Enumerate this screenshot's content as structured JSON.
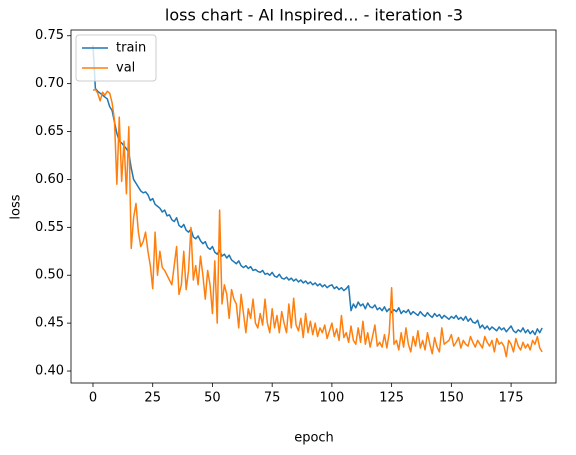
{
  "chart_data": {
    "type": "line",
    "title": "loss chart - AI Inspired... - iteration -3",
    "x_label": "epoch",
    "y_label": "loss",
    "x": [
      0,
      1,
      2,
      3,
      4,
      5,
      6,
      7,
      8,
      9,
      10,
      11,
      12,
      13,
      14,
      15,
      16,
      17,
      18,
      19,
      20,
      21,
      22,
      23,
      24,
      25,
      26,
      27,
      28,
      29,
      30,
      31,
      32,
      33,
      34,
      35,
      36,
      37,
      38,
      39,
      40,
      41,
      42,
      43,
      44,
      45,
      46,
      47,
      48,
      49,
      50,
      51,
      52,
      53,
      54,
      55,
      56,
      57,
      58,
      59,
      60,
      61,
      62,
      63,
      64,
      65,
      66,
      67,
      68,
      69,
      70,
      71,
      72,
      73,
      74,
      75,
      76,
      77,
      78,
      79,
      80,
      81,
      82,
      83,
      84,
      85,
      86,
      87,
      88,
      89,
      90,
      91,
      92,
      93,
      94,
      95,
      96,
      97,
      98,
      99,
      100,
      101,
      102,
      103,
      104,
      105,
      106,
      107,
      108,
      109,
      110,
      111,
      112,
      113,
      114,
      115,
      116,
      117,
      118,
      119,
      120,
      121,
      122,
      123,
      124,
      125,
      126,
      127,
      128,
      129,
      130,
      131,
      132,
      133,
      134,
      135,
      136,
      137,
      138,
      139,
      140,
      141,
      142,
      143,
      144,
      145,
      146,
      147,
      148,
      149,
      150,
      151,
      152,
      153,
      154,
      155,
      156,
      157,
      158,
      159,
      160,
      161,
      162,
      163,
      164,
      165,
      166,
      167,
      168,
      169,
      170,
      171,
      172,
      173,
      174,
      175,
      176,
      177,
      178,
      179,
      180,
      181,
      182,
      183,
      184,
      185,
      186,
      187,
      188
    ],
    "series": [
      {
        "name": "train",
        "color": "#1f77b4",
        "values": [
          0.74,
          0.695,
          0.692,
          0.69,
          0.688,
          0.686,
          0.684,
          0.676,
          0.672,
          0.66,
          0.648,
          0.64,
          0.638,
          0.635,
          0.632,
          0.628,
          0.612,
          0.6,
          0.596,
          0.592,
          0.588,
          0.586,
          0.587,
          0.584,
          0.578,
          0.58,
          0.574,
          0.572,
          0.57,
          0.566,
          0.568,
          0.562,
          0.563,
          0.558,
          0.556,
          0.56,
          0.552,
          0.55,
          0.553,
          0.547,
          0.545,
          0.548,
          0.54,
          0.538,
          0.541,
          0.536,
          0.533,
          0.535,
          0.529,
          0.527,
          0.53,
          0.524,
          0.522,
          0.526,
          0.52,
          0.522,
          0.518,
          0.521,
          0.516,
          0.514,
          0.512,
          0.515,
          0.51,
          0.508,
          0.51,
          0.507,
          0.509,
          0.505,
          0.506,
          0.504,
          0.503,
          0.505,
          0.501,
          0.502,
          0.5,
          0.503,
          0.499,
          0.498,
          0.501,
          0.497,
          0.496,
          0.498,
          0.495,
          0.497,
          0.494,
          0.496,
          0.493,
          0.495,
          0.492,
          0.494,
          0.491,
          0.493,
          0.49,
          0.492,
          0.489,
          0.491,
          0.488,
          0.49,
          0.487,
          0.489,
          0.49,
          0.486,
          0.488,
          0.485,
          0.487,
          0.484,
          0.486,
          0.489,
          0.463,
          0.47,
          0.466,
          0.472,
          0.468,
          0.47,
          0.465,
          0.471,
          0.467,
          0.466,
          0.469,
          0.464,
          0.466,
          0.463,
          0.467,
          0.462,
          0.465,
          0.461,
          0.464,
          0.462,
          0.466,
          0.46,
          0.463,
          0.461,
          0.464,
          0.459,
          0.462,
          0.46,
          0.458,
          0.462,
          0.459,
          0.457,
          0.461,
          0.458,
          0.456,
          0.46,
          0.457,
          0.459,
          0.455,
          0.458,
          0.456,
          0.454,
          0.457,
          0.455,
          0.458,
          0.454,
          0.456,
          0.453,
          0.457,
          0.452,
          0.455,
          0.451,
          0.45,
          0.453,
          0.445,
          0.448,
          0.444,
          0.447,
          0.443,
          0.446,
          0.444,
          0.442,
          0.446,
          0.443,
          0.445,
          0.441,
          0.444,
          0.447,
          0.442,
          0.44,
          0.443,
          0.441,
          0.445,
          0.44,
          0.443,
          0.439,
          0.442,
          0.438,
          0.444,
          0.44,
          0.445
        ]
      },
      {
        "name": "val",
        "color": "#ff7f0e",
        "values": [
          0.693,
          0.694,
          0.69,
          0.682,
          0.691,
          0.688,
          0.692,
          0.69,
          0.68,
          0.662,
          0.595,
          0.665,
          0.598,
          0.64,
          0.585,
          0.655,
          0.528,
          0.56,
          0.575,
          0.545,
          0.53,
          0.535,
          0.545,
          0.525,
          0.51,
          0.486,
          0.545,
          0.5,
          0.525,
          0.508,
          0.505,
          0.5,
          0.495,
          0.49,
          0.51,
          0.53,
          0.48,
          0.49,
          0.525,
          0.485,
          0.505,
          0.55,
          0.495,
          0.51,
          0.49,
          0.52,
          0.5,
          0.475,
          0.505,
          0.49,
          0.46,
          0.515,
          0.45,
          0.568,
          0.47,
          0.49,
          0.48,
          0.455,
          0.485,
          0.475,
          0.47,
          0.445,
          0.48,
          0.46,
          0.44,
          0.465,
          0.455,
          0.475,
          0.45,
          0.445,
          0.46,
          0.448,
          0.475,
          0.45,
          0.44,
          0.465,
          0.445,
          0.458,
          0.44,
          0.462,
          0.45,
          0.44,
          0.47,
          0.445,
          0.476,
          0.448,
          0.442,
          0.455,
          0.435,
          0.46,
          0.44,
          0.452,
          0.438,
          0.45,
          0.436,
          0.445,
          0.44,
          0.448,
          0.434,
          0.442,
          0.45,
          0.436,
          0.444,
          0.432,
          0.458,
          0.435,
          0.44,
          0.43,
          0.447,
          0.432,
          0.428,
          0.445,
          0.43,
          0.452,
          0.428,
          0.44,
          0.425,
          0.436,
          0.448,
          0.426,
          0.43,
          0.425,
          0.438,
          0.424,
          0.44,
          0.487,
          0.428,
          0.432,
          0.422,
          0.44,
          0.425,
          0.445,
          0.428,
          0.42,
          0.436,
          0.426,
          0.442,
          0.424,
          0.432,
          0.422,
          0.44,
          0.428,
          0.418,
          0.435,
          0.425,
          0.42,
          0.445,
          0.428,
          0.43,
          0.432,
          0.438,
          0.426,
          0.43,
          0.435,
          0.424,
          0.432,
          0.428,
          0.426,
          0.436,
          0.43,
          0.425,
          0.432,
          0.428,
          0.424,
          0.436,
          0.43,
          0.426,
          0.432,
          0.42,
          0.434,
          0.428,
          0.43,
          0.426,
          0.415,
          0.432,
          0.428,
          0.42,
          0.434,
          0.426,
          0.422,
          0.43,
          0.424,
          0.428,
          0.422,
          0.432,
          0.428,
          0.436,
          0.424,
          0.42
        ]
      }
    ],
    "xlim": [
      -9.2,
      193.8
    ],
    "xticks": [
      0,
      25,
      50,
      75,
      100,
      125,
      150,
      175
    ],
    "ylim": [
      0.3875,
      0.756
    ],
    "yticks": [
      {
        "value": 0.4,
        "label": "0.40"
      },
      0.45,
      {
        "value": 0.5,
        "label": "0.50"
      },
      0.55,
      {
        "value": 0.6,
        "label": "0.60"
      },
      0.65,
      {
        "value": 0.7,
        "label": "0.70"
      },
      0.75
    ],
    "grid": false,
    "legend": "upper left"
  }
}
